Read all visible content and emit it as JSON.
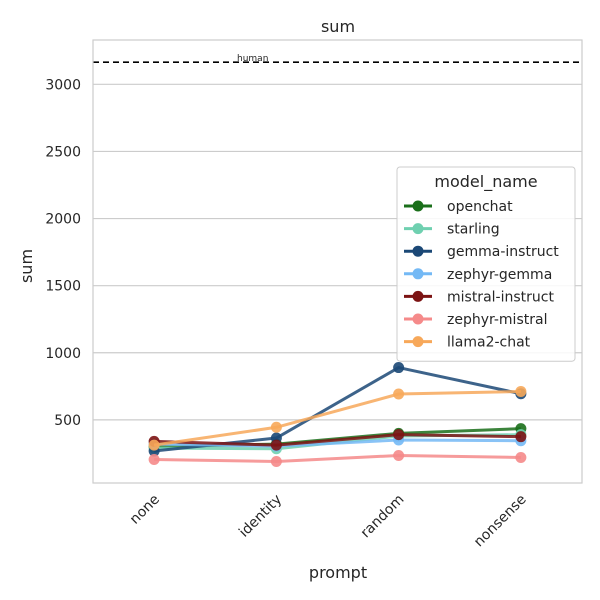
{
  "chart_data": {
    "type": "line",
    "title": "sum",
    "xlabel": "prompt",
    "ylabel": "sum",
    "categories": [
      "none",
      "identity",
      "random",
      "nonsense"
    ],
    "ylim": [
      30,
      3330
    ],
    "yticks": [
      500,
      1000,
      1500,
      2000,
      2500,
      3000
    ],
    "grid": "y",
    "reference_line": {
      "label": "human",
      "value": 3165,
      "style": "dashed",
      "color": "#000000"
    },
    "legend": {
      "title": "model_name",
      "placement": "right"
    },
    "series": [
      {
        "name": "openchat",
        "color": "#1a6f1a",
        "values": [
          300,
          320,
          400,
          435
        ]
      },
      {
        "name": "starling",
        "color": "#6fd0b0",
        "values": [
          290,
          285,
          380,
          390
        ]
      },
      {
        "name": "gemma-instruct",
        "color": "#1b4876",
        "values": [
          268,
          365,
          890,
          695
        ]
      },
      {
        "name": "zephyr-gemma",
        "color": "#74b9f5",
        "values": [
          320,
          305,
          350,
          345
        ]
      },
      {
        "name": "mistral-instruct",
        "color": "#7c1313",
        "values": [
          340,
          312,
          390,
          375
        ]
      },
      {
        "name": "zephyr-mistral",
        "color": "#f58a8a",
        "values": [
          205,
          190,
          235,
          220
        ]
      },
      {
        "name": "llama2-chat",
        "color": "#f7a85a",
        "values": [
          312,
          445,
          693,
          712
        ]
      }
    ]
  }
}
